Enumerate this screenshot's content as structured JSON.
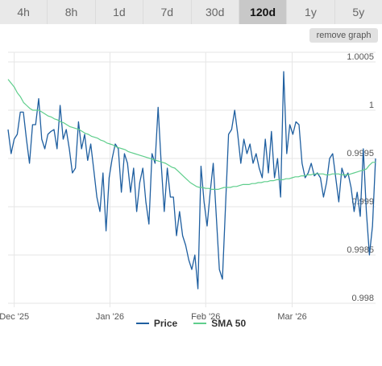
{
  "ranges": [
    {
      "label": "4h"
    },
    {
      "label": "8h"
    },
    {
      "label": "1d"
    },
    {
      "label": "7d"
    },
    {
      "label": "30d"
    },
    {
      "label": "120d",
      "active": true
    },
    {
      "label": "1y"
    },
    {
      "label": "5y"
    }
  ],
  "remove_graph_label": "remove graph",
  "colors": {
    "price": "#1f5fa0",
    "sma": "#5fce8c",
    "grid": "#e6e6e6",
    "axis_text": "#555555"
  },
  "chart_data": {
    "type": "line",
    "x_ticks": [
      {
        "label": "Dec '25",
        "x": 2
      },
      {
        "label": "Jan '26",
        "x": 33
      },
      {
        "label": "Feb '26",
        "x": 64
      },
      {
        "label": "Mar '26",
        "x": 92
      }
    ],
    "y_ticks": [
      0.998,
      0.9985,
      0.999,
      0.9995,
      1,
      1.0005
    ],
    "y_tick_labels": [
      "0.998",
      "0.9985",
      "0.999",
      "0.9995",
      "1",
      "1.0005"
    ],
    "ylim": [
      0.998,
      1.0006
    ],
    "xlim": [
      0,
      119
    ],
    "grid": true,
    "legend_position": "bottom-center",
    "series": [
      {
        "name": "Price",
        "values": [
          0.9998,
          0.99955,
          0.9997,
          0.99975,
          0.99998,
          0.99998,
          0.9997,
          0.99945,
          0.99985,
          0.99985,
          1.00012,
          0.9997,
          0.9996,
          0.99975,
          0.99978,
          0.9998,
          0.9996,
          1.00005,
          0.9997,
          0.9998,
          0.9996,
          0.99935,
          0.9994,
          0.99988,
          0.9996,
          0.99975,
          0.99948,
          0.99965,
          0.99938,
          0.9991,
          0.99895,
          0.99935,
          0.99875,
          0.9993,
          0.9995,
          0.99965,
          0.9996,
          0.99915,
          0.99955,
          0.99945,
          0.99915,
          0.9994,
          0.99895,
          0.99925,
          0.9994,
          0.99905,
          0.99882,
          0.99955,
          0.99945,
          1.00003,
          0.99945,
          0.99895,
          0.9994,
          0.9991,
          0.9991,
          0.9987,
          0.99895,
          0.9987,
          0.9986,
          0.99845,
          0.99835,
          0.9985,
          0.99815,
          0.99942,
          0.99905,
          0.9988,
          0.99915,
          0.99945,
          0.9989,
          0.99835,
          0.99825,
          0.999,
          0.99975,
          0.9998,
          1.0,
          0.99975,
          0.99945,
          0.9997,
          0.99955,
          0.99965,
          0.99945,
          0.99955,
          0.9994,
          0.9993,
          0.9997,
          0.99935,
          0.99978,
          0.9993,
          0.9995,
          0.9991,
          1.0004,
          0.99955,
          0.99985,
          0.99975,
          0.99988,
          0.99985,
          0.99945,
          0.9993,
          0.99935,
          0.99945,
          0.99932,
          0.99935,
          0.9993,
          0.9991,
          0.99925,
          0.9995,
          0.99955,
          0.9993,
          0.99905,
          0.9994,
          0.9993,
          0.99935,
          0.9992,
          0.99895,
          0.99915,
          0.9989,
          0.9996,
          0.99895,
          0.9985,
          0.9988,
          0.9995
        ]
      },
      {
        "name": "SMA 50",
        "values": [
          1.00032,
          1.00028,
          1.00024,
          1.00018,
          1.00014,
          1.00008,
          1.00005,
          1.00002,
          1.0,
          1.0,
          1.0,
          0.99998,
          0.99996,
          0.99994,
          0.99993,
          0.99991,
          0.9999,
          0.99988,
          0.99987,
          0.99985,
          0.99983,
          0.99982,
          0.99981,
          0.9998,
          0.99978,
          0.99976,
          0.99975,
          0.99973,
          0.99972,
          0.99971,
          0.99969,
          0.99968,
          0.99966,
          0.99965,
          0.99964,
          0.99962,
          0.99961,
          0.9996,
          0.99959,
          0.99957,
          0.99956,
          0.99955,
          0.99954,
          0.99953,
          0.99952,
          0.99951,
          0.9995,
          0.99949,
          0.99948,
          0.99947,
          0.99946,
          0.99945,
          0.99943,
          0.99941,
          0.9994,
          0.99937,
          0.99934,
          0.99931,
          0.99928,
          0.99925,
          0.99923,
          0.99921,
          0.9992,
          0.9992,
          0.99919,
          0.99919,
          0.99918,
          0.99918,
          0.99918,
          0.99919,
          0.9992,
          0.9992,
          0.9992,
          0.99921,
          0.99921,
          0.99922,
          0.99923,
          0.99923,
          0.99923,
          0.99924,
          0.99924,
          0.99925,
          0.99925,
          0.99926,
          0.99926,
          0.99927,
          0.99927,
          0.99928,
          0.99928,
          0.99928,
          0.99929,
          0.99929,
          0.9993,
          0.99931,
          0.99931,
          0.99932,
          0.99932,
          0.99933,
          0.99933,
          0.99934,
          0.99934,
          0.99934,
          0.99934,
          0.99933,
          0.99933,
          0.99934,
          0.99934,
          0.99934,
          0.99933,
          0.99933,
          0.99933,
          0.99934,
          0.99935,
          0.99936,
          0.99937,
          0.99938,
          0.99939,
          0.99943,
          0.99946,
          0.99946
        ]
      }
    ]
  },
  "legend": [
    {
      "label": "Price",
      "color": "#1f5fa0"
    },
    {
      "label": "SMA 50",
      "color": "#5fce8c"
    }
  ]
}
